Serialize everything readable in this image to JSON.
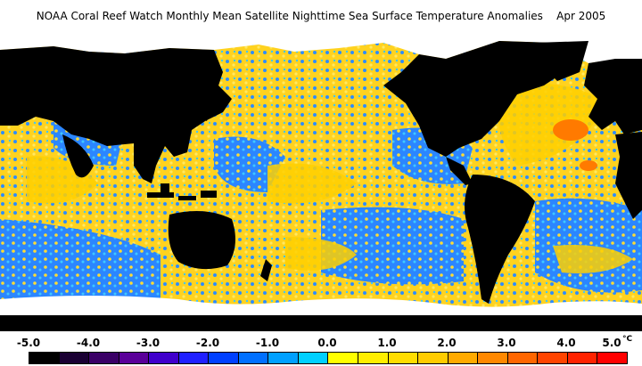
{
  "title": "NOAA Coral Reef Watch Monthly Mean Satellite Nighttime Sea Surface Temperature Anomalies    Apr 2005",
  "legend": {
    "ticks": [
      "-5.0",
      "-4.0",
      "-3.0",
      "-2.0",
      "-1.0",
      "0.0",
      "1.0",
      "2.0",
      "3.0",
      "4.0",
      "5.0"
    ],
    "unit": "°C",
    "colors": [
      "#000000",
      "#1a0033",
      "#3a0066",
      "#5a0099",
      "#4000cc",
      "#2020ff",
      "#0040ff",
      "#0070ff",
      "#00a0ff",
      "#00d0ff",
      "#ffff00",
      "#ffee00",
      "#ffdd00",
      "#ffcc00",
      "#ffaa00",
      "#ff8800",
      "#ff6600",
      "#ff4400",
      "#ff2200",
      "#ff0000"
    ]
  },
  "map_colors": {
    "land": "#000000",
    "ice": "#ffffff",
    "warm": "#ffdd22",
    "cool": "#2aa0ff"
  }
}
